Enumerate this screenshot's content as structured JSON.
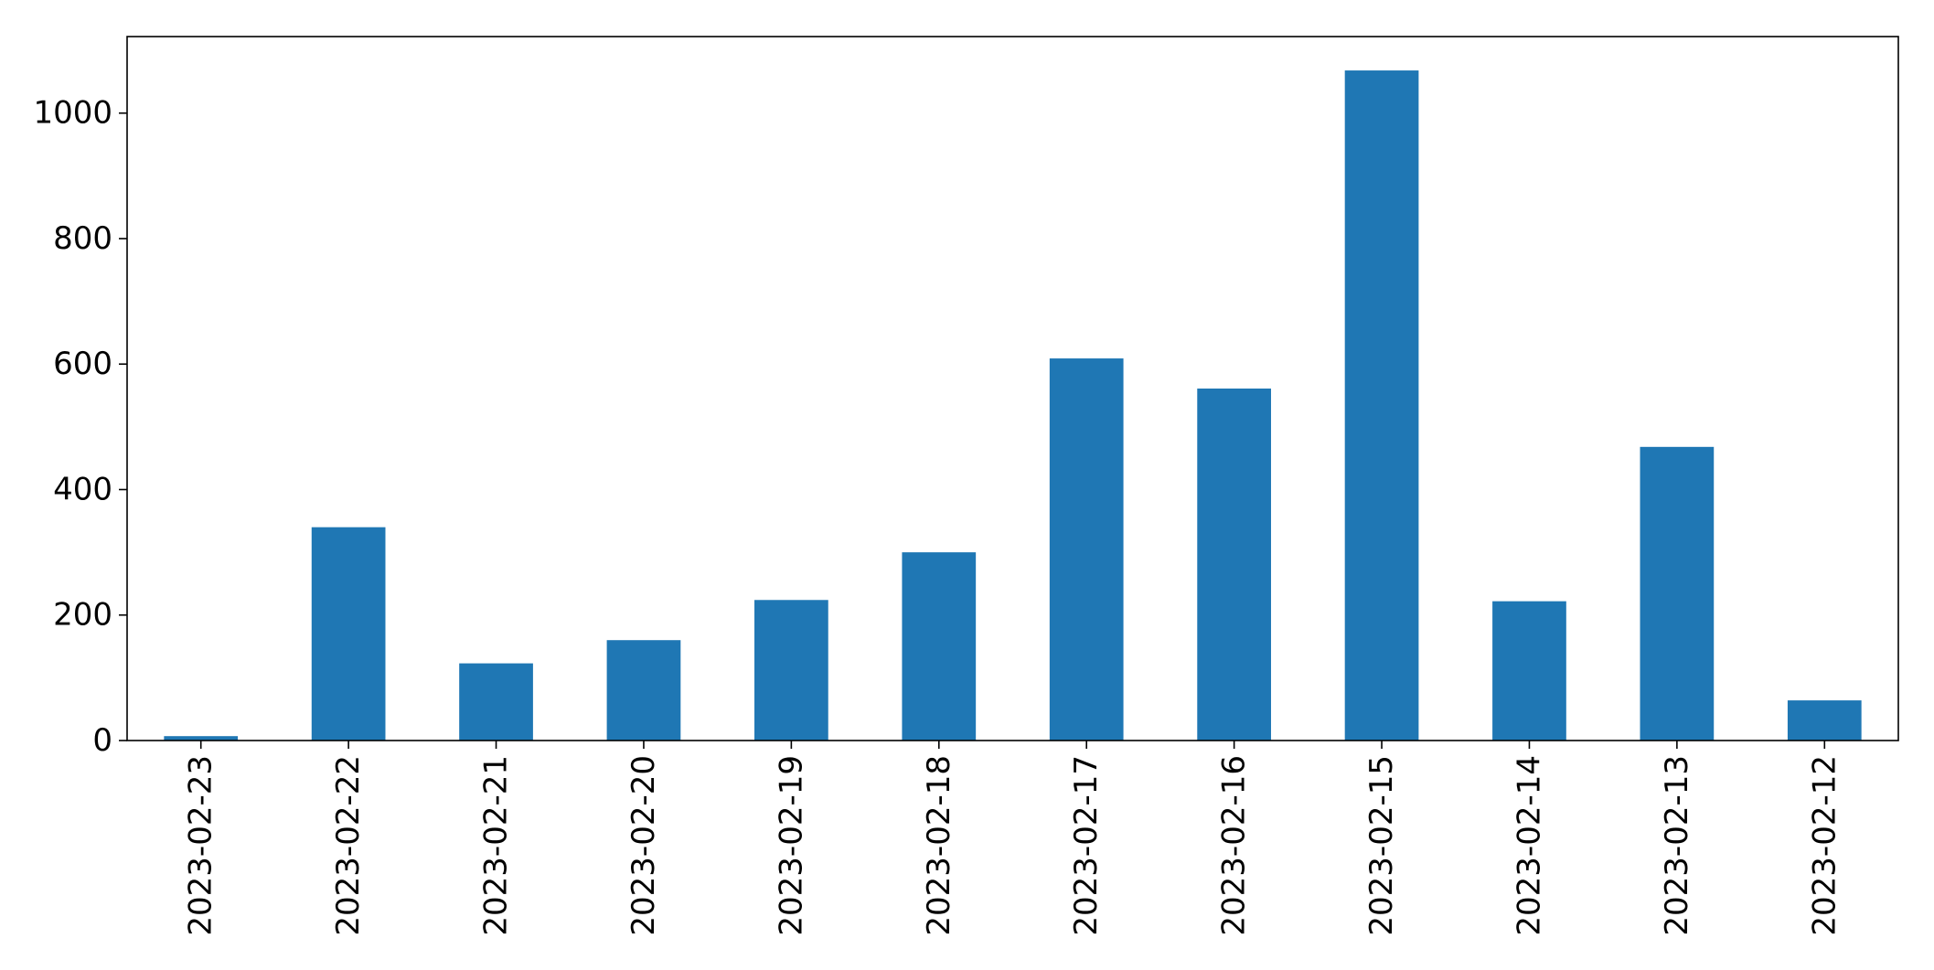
{
  "colors": {
    "bar": "#1f77b4",
    "axis": "#000000",
    "background": "#ffffff"
  },
  "chart_data": {
    "type": "bar",
    "title": "",
    "xlabel": "",
    "ylabel": "",
    "categories": [
      "2023-02-23",
      "2023-02-22",
      "2023-02-21",
      "2023-02-20",
      "2023-02-19",
      "2023-02-18",
      "2023-02-17",
      "2023-02-16",
      "2023-02-15",
      "2023-02-14",
      "2023-02-13",
      "2023-02-12"
    ],
    "values": [
      7,
      340,
      123,
      160,
      224,
      300,
      609,
      561,
      1068,
      222,
      468,
      64
    ],
    "ylim": [
      0,
      1122
    ],
    "yticks": [
      0,
      200,
      400,
      600,
      800,
      1000
    ],
    "grid": false,
    "legend": "none"
  }
}
